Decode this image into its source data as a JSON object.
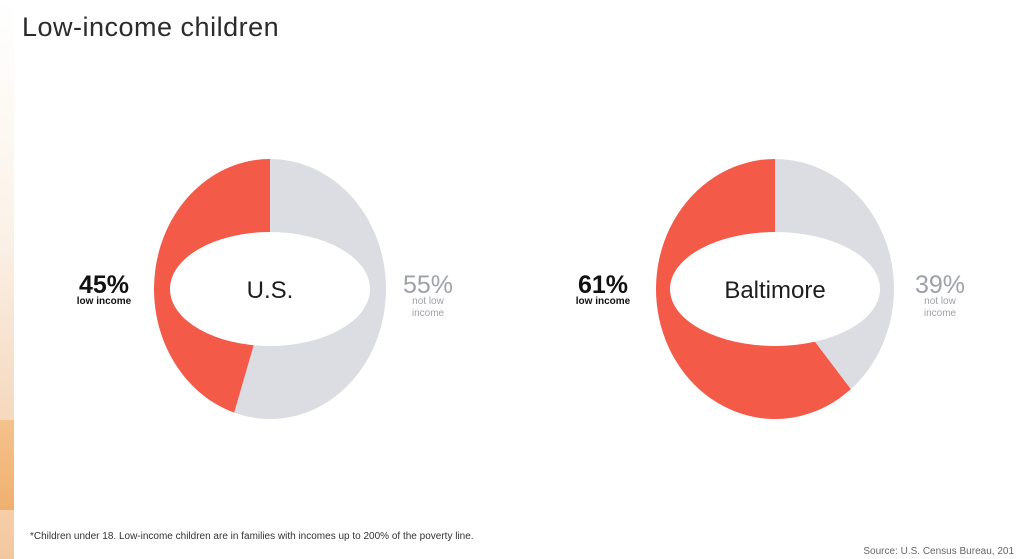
{
  "title": "Low-income children",
  "colors": {
    "low_income": "#f45a48",
    "not_low_income": "#dcdde2",
    "low_label": "#111111",
    "not_low_label": "#9ea1a8",
    "center_text": "#1d1d1d"
  },
  "chart_data": [
    {
      "type": "pie",
      "center_label": "U.S.",
      "slices": [
        {
          "pct_text": "45%",
          "label": "low income",
          "value": 45
        },
        {
          "pct_text": "55%",
          "label": "not low income",
          "value": 55
        }
      ]
    },
    {
      "type": "pie",
      "center_label": "Baltimore",
      "slices": [
        {
          "pct_text": "61%",
          "label": "low income",
          "value": 61
        },
        {
          "pct_text": "39%",
          "label": "not low income",
          "value": 39
        }
      ]
    }
  ],
  "footnote": "*Children under 18. Low-income children are in families with incomes up to 200% of the poverty line.",
  "source": "Source: U.S. Census Bureau, 201"
}
